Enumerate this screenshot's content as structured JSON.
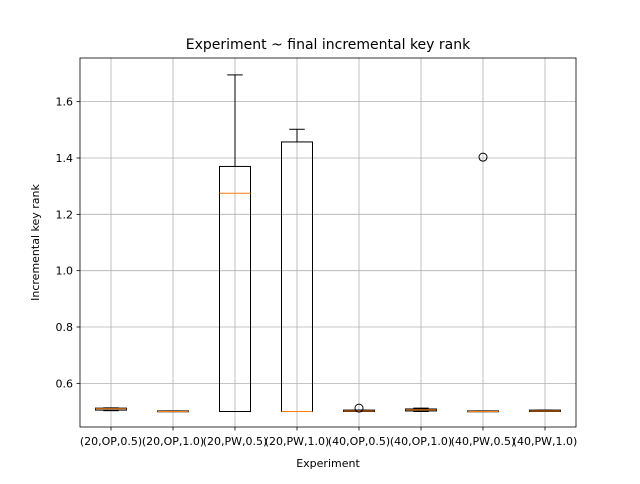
{
  "chart_data": {
    "type": "box",
    "title": "Experiment ~ final incremental key rank",
    "xlabel": "Experiment",
    "ylabel": "Incremental key rank",
    "ylim": [
      0.445,
      1.755
    ],
    "yticks": [
      0.6,
      0.8,
      1.0,
      1.2,
      1.4,
      1.6
    ],
    "ytick_labels": [
      "0.6",
      "0.8",
      "1.0",
      "1.2",
      "1.4",
      "1.6"
    ],
    "grid": true,
    "categories": [
      "(20,OP,0.5)",
      "(20,OP,1.0)",
      "(20,PW,0.5)",
      "(20,PW,1.0)",
      "(40,OP,0.5)",
      "(40,OP,1.0)",
      "(40,PW,0.5)",
      "(40,PW,1.0)"
    ],
    "boxes": [
      {
        "whislo": 0.503,
        "q1": 0.505,
        "med": 0.51,
        "q3": 0.512,
        "whishi": 0.513,
        "fliers": []
      },
      {
        "whislo": 0.5,
        "q1": 0.5,
        "med": 0.5,
        "q3": 0.502,
        "whishi": 0.502,
        "fliers": []
      },
      {
        "whislo": 0.5,
        "q1": 0.5,
        "med": 1.275,
        "q3": 1.37,
        "whishi": 1.695,
        "fliers": []
      },
      {
        "whislo": 0.5,
        "q1": 0.5,
        "med": 0.5,
        "q3": 1.457,
        "whishi": 1.502,
        "fliers": []
      },
      {
        "whislo": 0.5,
        "q1": 0.5,
        "med": 0.502,
        "q3": 0.505,
        "whishi": 0.505,
        "fliers": [
          0.512
        ]
      },
      {
        "whislo": 0.5,
        "q1": 0.502,
        "med": 0.506,
        "q3": 0.509,
        "whishi": 0.512,
        "fliers": []
      },
      {
        "whislo": 0.5,
        "q1": 0.5,
        "med": 0.5,
        "q3": 0.502,
        "whishi": 0.502,
        "fliers": [
          1.403
        ]
      },
      {
        "whislo": 0.5,
        "q1": 0.5,
        "med": 0.502,
        "q3": 0.505,
        "whishi": 0.505,
        "fliers": []
      }
    ]
  }
}
